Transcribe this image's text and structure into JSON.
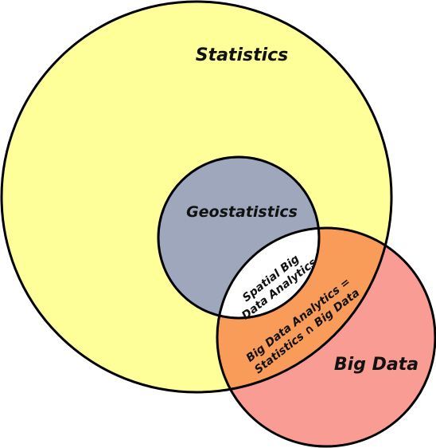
{
  "diagram": {
    "type": "venn",
    "sets": {
      "statistics": {
        "label": "Statistics",
        "fill": "#ffff99"
      },
      "geostatistics": {
        "label": "Geostatistics",
        "fill": "#9ea7bb"
      },
      "big_data": {
        "label": "Big Data",
        "fill": "#f99d94"
      }
    },
    "intersections": {
      "big_data_analytics": {
        "label_line1": "Big Data Analytics =",
        "label_line2": "Statistics ∩ Big Data",
        "fill": "#f99c5a"
      },
      "spatial_big_data_analytics": {
        "label_line1": "Spatial Big",
        "label_line2": "Data Analytics",
        "fill": "#ffffff"
      }
    },
    "stroke_color": "#000000"
  }
}
